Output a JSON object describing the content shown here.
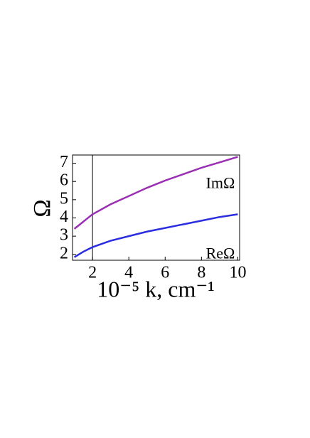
{
  "chart_data": {
    "type": "line",
    "y_label": "Ω",
    "x_label": "10⁻⁵ k, cm⁻¹",
    "x": [
      1,
      1.5,
      2,
      3,
      4,
      5,
      6,
      7,
      8,
      9,
      10
    ],
    "series": [
      {
        "name": "ImΩ",
        "color": "#9a2fb4",
        "values": [
          3.4,
          3.8,
          4.2,
          4.75,
          5.2,
          5.65,
          6.05,
          6.4,
          6.75,
          7.05,
          7.35
        ]
      },
      {
        "name": "ReΩ",
        "color": "#2b2de0",
        "values": [
          1.85,
          2.15,
          2.4,
          2.75,
          3.0,
          3.25,
          3.45,
          3.65,
          3.85,
          4.05,
          4.2
        ]
      }
    ],
    "vline": 2,
    "xlim": [
      0.9,
      10.1
    ],
    "ylim": [
      1.68,
      7.45
    ],
    "xticks": [
      2,
      4,
      6,
      8,
      10
    ],
    "yticks": [
      2,
      3,
      4,
      5,
      6,
      7
    ]
  }
}
